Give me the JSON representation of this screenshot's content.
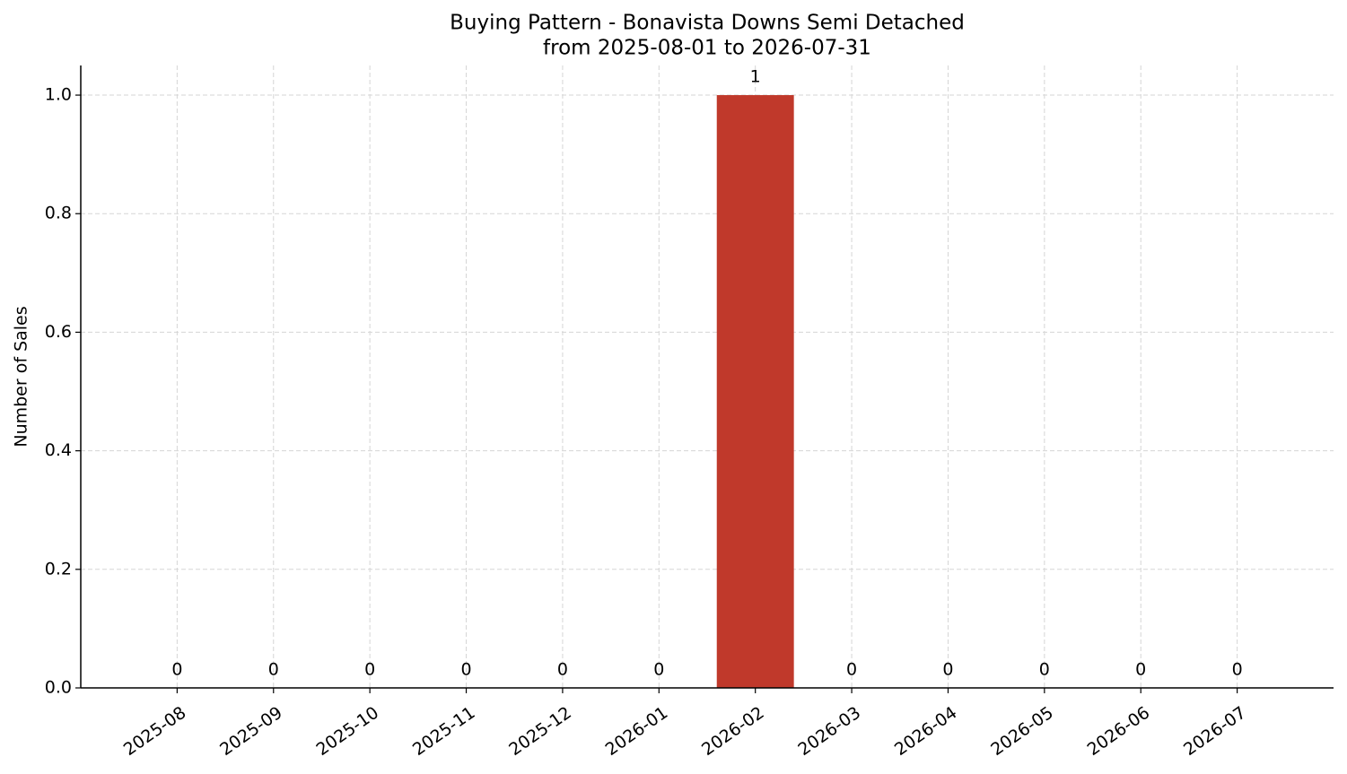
{
  "chart_data": {
    "type": "bar",
    "title": "Buying Pattern - Bonavista Downs Semi Detached",
    "subtitle": "from 2025-08-01 to 2026-07-31",
    "y_label": "Number of Sales",
    "categories": [
      "2025-08",
      "2025-09",
      "2025-10",
      "2025-11",
      "2025-12",
      "2026-01",
      "2026-02",
      "2026-03",
      "2026-04",
      "2026-05",
      "2026-06",
      "2026-07"
    ],
    "values": [
      0,
      0,
      0,
      0,
      0,
      0,
      1,
      0,
      0,
      0,
      0,
      0
    ],
    "color": "#c0392b",
    "ylim": [
      0,
      1.05
    ],
    "yticks": [
      {
        "value": 0,
        "label": "0.0"
      },
      0.2,
      0.4,
      0.6,
      0.8,
      {
        "value": 1,
        "label": "1.0"
      }
    ],
    "grid": true
  }
}
